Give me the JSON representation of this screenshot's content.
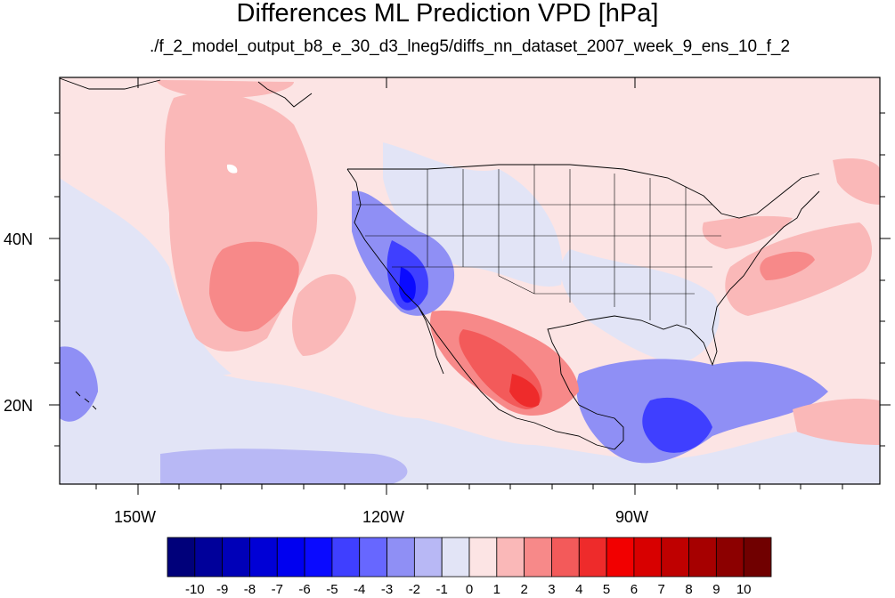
{
  "title": "Differences ML Prediction VPD [hPa]",
  "subtitle": "./f_2_model_output_b8_e_30_d3_lneg5/diffs_nn_dataset_2007_week_9_ens_10_f_2",
  "axes": {
    "lon_labels": [
      "150W",
      "120W",
      "90W"
    ],
    "lat_labels": [
      "40N",
      "20N"
    ]
  },
  "colorbar": {
    "labels": [
      "-10",
      "-9",
      "-8",
      "-7",
      "-6",
      "-5",
      "-4",
      "-3",
      "-2",
      "-1",
      "0",
      "1",
      "2",
      "3",
      "4",
      "5",
      "6",
      "7",
      "8",
      "9",
      "10"
    ],
    "colors": [
      "#00007a",
      "#00009a",
      "#0000b8",
      "#0000d6",
      "#0000f0",
      "#0a0aff",
      "#3f3fff",
      "#6767ff",
      "#8f8ff5",
      "#b8b8f5",
      "#e2e4f6",
      "#fce4e4",
      "#fab8b8",
      "#f78989",
      "#f35a5a",
      "#ee2b2b",
      "#f20000",
      "#d80000",
      "#bf0000",
      "#a60000",
      "#8c0000",
      "#700000"
    ]
  },
  "colors": {
    "background_positive": "#fce4e4",
    "background_negative": "#e2e4f6"
  }
}
